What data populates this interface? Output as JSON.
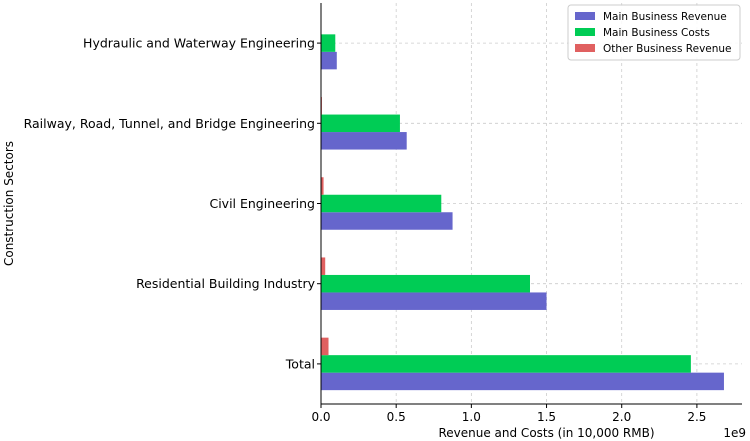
{
  "chart_data": {
    "type": "bar",
    "orientation": "horizontal",
    "categories": [
      "Total",
      "Residential Building Industry",
      "Civil Engineering",
      "Railway, Road, Tunnel, and Bridge Engineering",
      "Hydraulic and Waterway Engineering"
    ],
    "series": [
      {
        "name": "Main Business Revenue",
        "color": "#6666cc",
        "values": [
          2.68,
          1.5,
          0.875,
          0.57,
          0.105
        ]
      },
      {
        "name": "Main Business Costs",
        "color": "#00cc55",
        "values": [
          2.46,
          1.39,
          0.8,
          0.525,
          0.095
        ]
      },
      {
        "name": "Other Business Revenue",
        "color": "#e06060",
        "values": [
          0.05,
          0.028,
          0.017,
          0.006,
          0.002
        ]
      }
    ],
    "xlabel": "Revenue and Costs (in 10,000 RMB)",
    "ylabel": "Construction Sectors",
    "xlim": [
      0,
      2.8
    ],
    "x_ticks": [
      0,
      0.5,
      1.0,
      1.5,
      2.0,
      2.5
    ],
    "x_tick_labels": [
      "0.0",
      "0.5",
      "1.0",
      "1.5",
      "2.0",
      "2.5"
    ],
    "x_multiplier_label": "1e9",
    "grid": true,
    "legend": "top-right"
  }
}
